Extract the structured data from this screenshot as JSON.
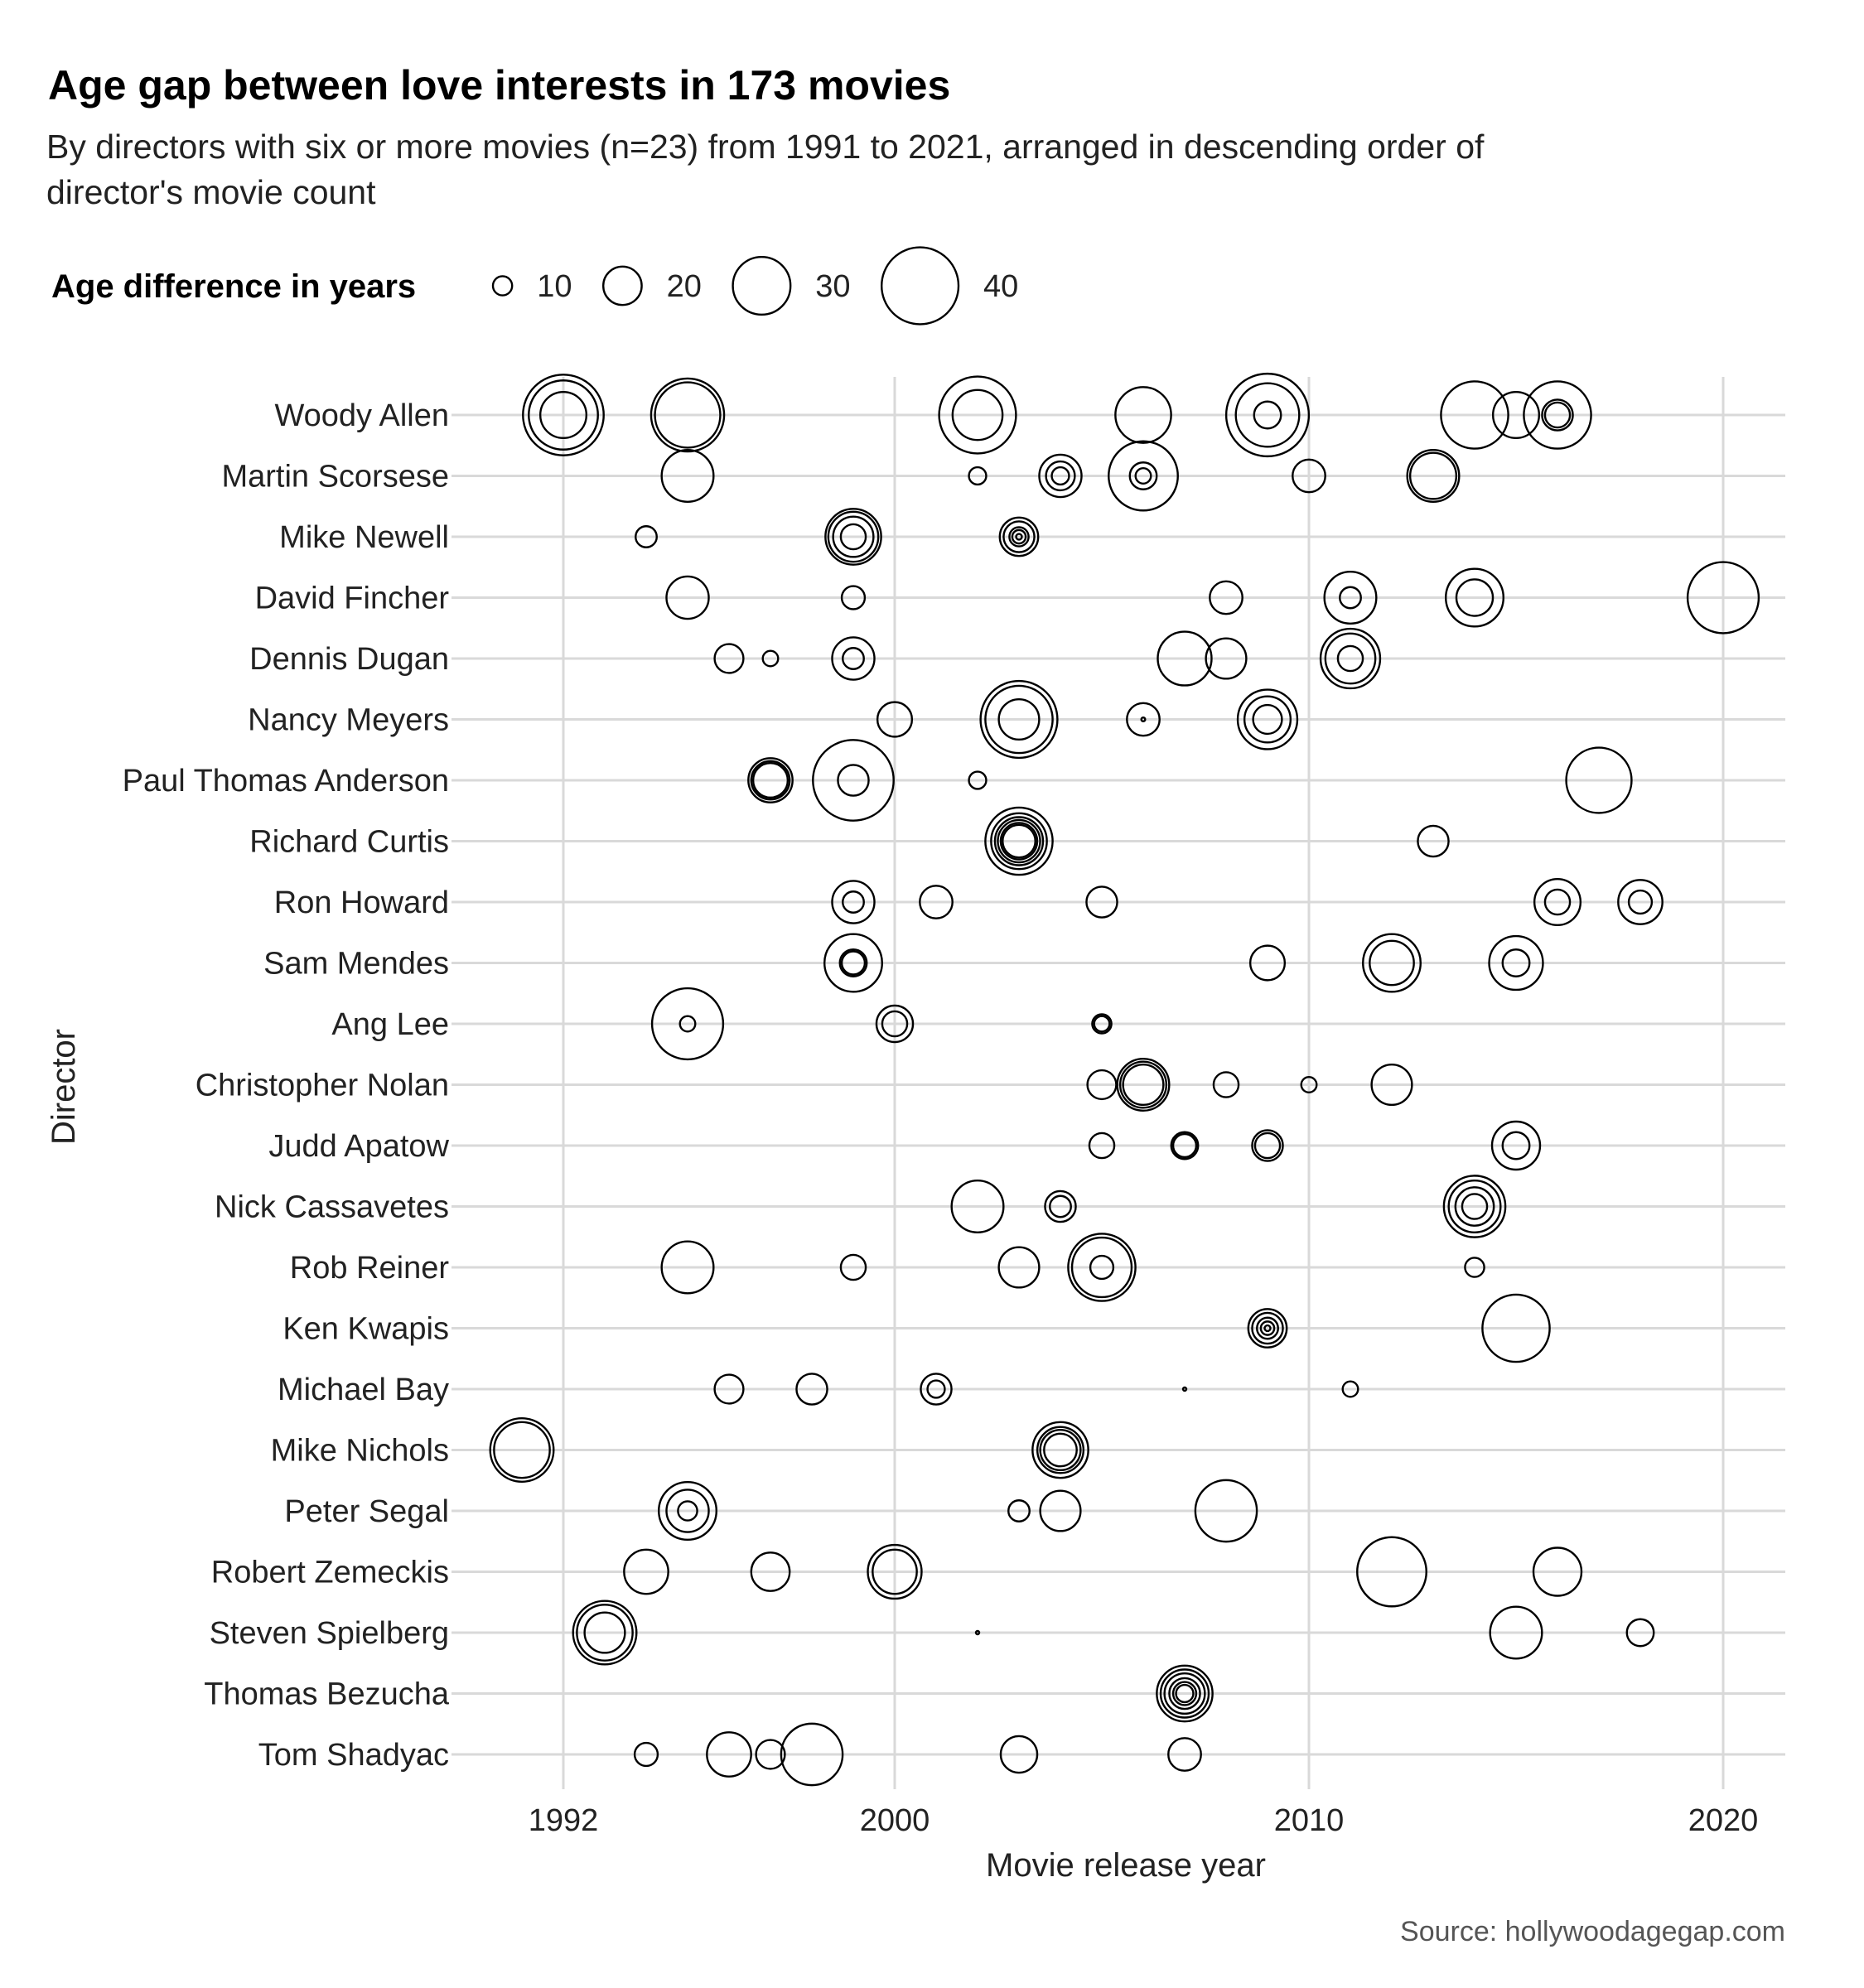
{
  "chart_data": {
    "type": "scatter",
    "title": "Age gap between love interests in 173 movies",
    "subtitle_lines": [
      "By directors with six or more movies (n=23) from 1991 to 2021, arranged in descending order of",
      "director's movie count"
    ],
    "xlabel": "Movie release year",
    "ylabel": "Director",
    "xlim": [
      1989.3,
      2021.5
    ],
    "x_ticks": [
      1992,
      2000,
      2010,
      2020
    ],
    "size_legend": {
      "title": "Age difference in years",
      "values": [
        10,
        20,
        30,
        40
      ]
    },
    "source": "Source: hollywoodagegap.com",
    "directors": [
      "Woody Allen",
      "Martin Scorsese",
      "Mike Newell",
      "David Fincher",
      "Dennis Dugan",
      "Nancy Meyers",
      "Paul Thomas Anderson",
      "Richard Curtis",
      "Ron Howard",
      "Sam Mendes",
      "Ang Lee",
      "Christopher Nolan",
      "Judd Apatow",
      "Nick Cassavetes",
      "Rob Reiner",
      "Ken Kwapis",
      "Michael Bay",
      "Mike Nichols",
      "Peter Segal",
      "Robert Zemeckis",
      "Steven Spielberg",
      "Thomas Bezucha",
      "Tom Shadyac"
    ],
    "points": [
      {
        "director": "Woody Allen",
        "year": 1992,
        "gaps": [
          42,
          36,
          24
        ]
      },
      {
        "director": "Woody Allen",
        "year": 1995,
        "gaps": [
          38,
          34
        ]
      },
      {
        "director": "Woody Allen",
        "year": 2002,
        "gaps": [
          40,
          26
        ]
      },
      {
        "director": "Woody Allen",
        "year": 2006,
        "gaps": [
          29
        ]
      },
      {
        "director": "Woody Allen",
        "year": 2009,
        "gaps": [
          43,
          33,
          14
        ]
      },
      {
        "director": "Woody Allen",
        "year": 2014,
        "gaps": [
          35
        ]
      },
      {
        "director": "Woody Allen",
        "year": 2015,
        "gaps": [
          24
        ]
      },
      {
        "director": "Woody Allen",
        "year": 2016,
        "gaps": [
          35,
          16,
          13
        ]
      },
      {
        "director": "Martin Scorsese",
        "year": 1995,
        "gaps": [
          27
        ]
      },
      {
        "director": "Martin Scorsese",
        "year": 2002,
        "gaps": [
          9
        ]
      },
      {
        "director": "Martin Scorsese",
        "year": 2004,
        "gaps": [
          22,
          15,
          9
        ]
      },
      {
        "director": "Martin Scorsese",
        "year": 2006,
        "gaps": [
          36,
          14,
          8
        ]
      },
      {
        "director": "Martin Scorsese",
        "year": 2010,
        "gaps": [
          17
        ]
      },
      {
        "director": "Martin Scorsese",
        "year": 2013,
        "gaps": [
          27,
          24
        ]
      },
      {
        "director": "Mike Newell",
        "year": 1994,
        "gaps": [
          11
        ]
      },
      {
        "director": "Mike Newell",
        "year": 1999,
        "gaps": [
          29,
          26,
          21,
          13
        ]
      },
      {
        "director": "Mike Newell",
        "year": 2003,
        "gaps": [
          20,
          16,
          10,
          7,
          3
        ]
      },
      {
        "director": "David Fincher",
        "year": 1995,
        "gaps": [
          22
        ]
      },
      {
        "director": "David Fincher",
        "year": 1999,
        "gaps": [
          12
        ]
      },
      {
        "director": "David Fincher",
        "year": 2008,
        "gaps": [
          17
        ]
      },
      {
        "director": "David Fincher",
        "year": 2011,
        "gaps": [
          27,
          11
        ]
      },
      {
        "director": "David Fincher",
        "year": 2014,
        "gaps": [
          30,
          19
        ]
      },
      {
        "director": "David Fincher",
        "year": 2020,
        "gaps": [
          37
        ]
      },
      {
        "director": "Dennis Dugan",
        "year": 1996,
        "gaps": [
          15
        ]
      },
      {
        "director": "Dennis Dugan",
        "year": 1997,
        "gaps": [
          8
        ]
      },
      {
        "director": "Dennis Dugan",
        "year": 1999,
        "gaps": [
          22,
          11
        ]
      },
      {
        "director": "Dennis Dugan",
        "year": 2007,
        "gaps": [
          28
        ]
      },
      {
        "director": "Dennis Dugan",
        "year": 2008,
        "gaps": [
          21
        ]
      },
      {
        "director": "Dennis Dugan",
        "year": 2011,
        "gaps": [
          31,
          26,
          13
        ]
      },
      {
        "director": "Nancy Meyers",
        "year": 2000,
        "gaps": [
          18
        ]
      },
      {
        "director": "Nancy Meyers",
        "year": 2003,
        "gaps": [
          40,
          35,
          21
        ]
      },
      {
        "director": "Nancy Meyers",
        "year": 2006,
        "gaps": [
          17,
          2
        ]
      },
      {
        "director": "Nancy Meyers",
        "year": 2009,
        "gaps": [
          31,
          24,
          15
        ]
      },
      {
        "director": "Paul Thomas Anderson",
        "year": 1997,
        "gaps": [
          23,
          20,
          18
        ]
      },
      {
        "director": "Paul Thomas Anderson",
        "year": 1999,
        "gaps": [
          42,
          16
        ]
      },
      {
        "director": "Paul Thomas Anderson",
        "year": 2002,
        "gaps": [
          9
        ]
      },
      {
        "director": "Paul Thomas Anderson",
        "year": 2017,
        "gaps": [
          34
        ]
      },
      {
        "director": "Richard Curtis",
        "year": 2003,
        "gaps": [
          35,
          29,
          25,
          22,
          19,
          17
        ]
      },
      {
        "director": "Richard Curtis",
        "year": 2013,
        "gaps": [
          16
        ]
      },
      {
        "director": "Ron Howard",
        "year": 1999,
        "gaps": [
          22,
          11
        ]
      },
      {
        "director": "Ron Howard",
        "year": 2001,
        "gaps": [
          17
        ]
      },
      {
        "director": "Ron Howard",
        "year": 2005,
        "gaps": [
          16
        ]
      },
      {
        "director": "Ron Howard",
        "year": 2016,
        "gaps": [
          24,
          13
        ]
      },
      {
        "director": "Ron Howard",
        "year": 2018,
        "gaps": [
          23,
          12
        ]
      },
      {
        "director": "Sam Mendes",
        "year": 1999,
        "gaps": [
          30,
          14,
          12
        ]
      },
      {
        "director": "Sam Mendes",
        "year": 2009,
        "gaps": [
          18
        ]
      },
      {
        "director": "Sam Mendes",
        "year": 2012,
        "gaps": [
          30,
          23
        ]
      },
      {
        "director": "Sam Mendes",
        "year": 2015,
        "gaps": [
          28,
          14
        ]
      },
      {
        "director": "Ang Lee",
        "year": 1995,
        "gaps": [
          37,
          8
        ]
      },
      {
        "director": "Ang Lee",
        "year": 2000,
        "gaps": [
          19,
          13
        ]
      },
      {
        "director": "Ang Lee",
        "year": 2005,
        "gaps": [
          10,
          8
        ]
      },
      {
        "director": "Christopher Nolan",
        "year": 2005,
        "gaps": [
          15
        ]
      },
      {
        "director": "Christopher Nolan",
        "year": 2006,
        "gaps": [
          27,
          24,
          21
        ]
      },
      {
        "director": "Christopher Nolan",
        "year": 2008,
        "gaps": [
          13
        ]
      },
      {
        "director": "Christopher Nolan",
        "year": 2010,
        "gaps": [
          8
        ]
      },
      {
        "director": "Christopher Nolan",
        "year": 2012,
        "gaps": [
          21
        ]
      },
      {
        "director": "Judd Apatow",
        "year": 2005,
        "gaps": [
          13
        ]
      },
      {
        "director": "Judd Apatow",
        "year": 2007,
        "gaps": [
          14,
          12
        ]
      },
      {
        "director": "Judd Apatow",
        "year": 2009,
        "gaps": [
          16,
          13
        ]
      },
      {
        "director": "Judd Apatow",
        "year": 2015,
        "gaps": [
          25,
          14
        ]
      },
      {
        "director": "Nick Cassavetes",
        "year": 2002,
        "gaps": [
          27
        ]
      },
      {
        "director": "Nick Cassavetes",
        "year": 2004,
        "gaps": [
          16,
          11
        ]
      },
      {
        "director": "Nick Cassavetes",
        "year": 2014,
        "gaps": [
          32,
          27,
          20,
          13
        ]
      },
      {
        "director": "Rob Reiner",
        "year": 1995,
        "gaps": [
          27
        ]
      },
      {
        "director": "Rob Reiner",
        "year": 1999,
        "gaps": [
          13
        ]
      },
      {
        "director": "Rob Reiner",
        "year": 2003,
        "gaps": [
          21
        ]
      },
      {
        "director": "Rob Reiner",
        "year": 2005,
        "gaps": [
          35,
          31,
          12
        ]
      },
      {
        "director": "Rob Reiner",
        "year": 2014,
        "gaps": [
          10
        ]
      },
      {
        "director": "Ken Kwapis",
        "year": 2009,
        "gaps": [
          20,
          16,
          11,
          7,
          3
        ]
      },
      {
        "director": "Ken Kwapis",
        "year": 2015,
        "gaps": [
          35
        ]
      },
      {
        "director": "Michael Bay",
        "year": 1996,
        "gaps": [
          15
        ]
      },
      {
        "director": "Michael Bay",
        "year": 1998,
        "gaps": [
          16
        ]
      },
      {
        "director": "Michael Bay",
        "year": 2001,
        "gaps": [
          16,
          9
        ]
      },
      {
        "director": "Michael Bay",
        "year": 2007,
        "gaps": [
          1
        ]
      },
      {
        "director": "Michael Bay",
        "year": 2011,
        "gaps": [
          8
        ]
      },
      {
        "director": "Mike Nichols",
        "year": 1991,
        "gaps": [
          33,
          29
        ]
      },
      {
        "director": "Mike Nichols",
        "year": 2004,
        "gaps": [
          29,
          24,
          21,
          17
        ]
      },
      {
        "director": "Peter Segal",
        "year": 1995,
        "gaps": [
          30,
          22,
          10
        ]
      },
      {
        "director": "Peter Segal",
        "year": 2003,
        "gaps": [
          11
        ]
      },
      {
        "director": "Peter Segal",
        "year": 2004,
        "gaps": [
          21
        ]
      },
      {
        "director": "Peter Segal",
        "year": 2008,
        "gaps": [
          32
        ]
      },
      {
        "director": "Robert Zemeckis",
        "year": 1994,
        "gaps": [
          23
        ]
      },
      {
        "director": "Robert Zemeckis",
        "year": 1997,
        "gaps": [
          20
        ]
      },
      {
        "director": "Robert Zemeckis",
        "year": 2000,
        "gaps": [
          28,
          23
        ]
      },
      {
        "director": "Robert Zemeckis",
        "year": 2012,
        "gaps": [
          36
        ]
      },
      {
        "director": "Robert Zemeckis",
        "year": 2016,
        "gaps": [
          25
        ]
      },
      {
        "director": "Steven Spielberg",
        "year": 1993,
        "gaps": [
          33,
          29,
          21
        ]
      },
      {
        "director": "Steven Spielberg",
        "year": 2002,
        "gaps": [
          1
        ]
      },
      {
        "director": "Steven Spielberg",
        "year": 2015,
        "gaps": [
          27
        ]
      },
      {
        "director": "Steven Spielberg",
        "year": 2018,
        "gaps": [
          14
        ]
      },
      {
        "director": "Thomas Bezucha",
        "year": 2007,
        "gaps": [
          29,
          25,
          21,
          16,
          12,
          9
        ]
      },
      {
        "director": "Tom Shadyac",
        "year": 1994,
        "gaps": [
          12
        ]
      },
      {
        "director": "Tom Shadyac",
        "year": 1996,
        "gaps": [
          23
        ]
      },
      {
        "director": "Tom Shadyac",
        "year": 1997,
        "gaps": [
          15
        ]
      },
      {
        "director": "Tom Shadyac",
        "year": 1998,
        "gaps": [
          32
        ]
      },
      {
        "director": "Tom Shadyac",
        "year": 2003,
        "gaps": [
          19
        ]
      },
      {
        "director": "Tom Shadyac",
        "year": 2007,
        "gaps": [
          17
        ]
      }
    ]
  }
}
